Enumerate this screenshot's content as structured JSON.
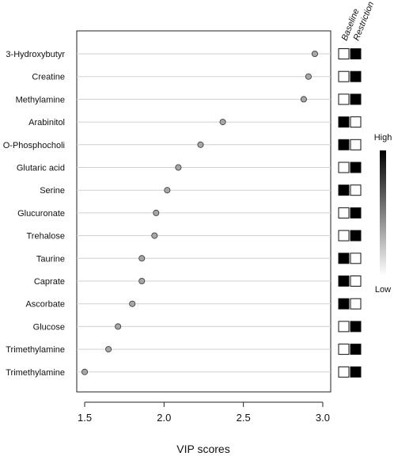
{
  "chart_data": {
    "type": "scatter",
    "subtype": "vip-dot-plot",
    "xlabel": "VIP scores",
    "xlim": [
      1.45,
      3.05
    ],
    "xticks": [
      1.5,
      2.0,
      2.5,
      3.0
    ],
    "xtick_labels": [
      "1.5",
      "2.0",
      "2.5",
      "3.0"
    ],
    "grid": "horizontal lines per row",
    "point_color": "#a6a6a6",
    "categories": [
      "3-Hydroxybutyr",
      "Creatine",
      "Methylamine",
      "Arabinitol",
      "O-Phosphocholi",
      "Glutaric acid",
      "Serine",
      "Glucuronate",
      "Trehalose",
      "Taurine",
      "Caprate",
      "Ascorbate",
      "Glucose",
      "Trimethylamine",
      "Trimethylamine"
    ],
    "values": [
      2.95,
      2.91,
      2.88,
      2.37,
      2.23,
      2.09,
      2.02,
      1.95,
      1.94,
      1.86,
      1.86,
      1.8,
      1.71,
      1.65,
      1.5
    ],
    "heatmap": {
      "columns": [
        "Baseline",
        "Restriction"
      ],
      "levels": [
        [
          0,
          1
        ],
        [
          0,
          1
        ],
        [
          0,
          1
        ],
        [
          1,
          0
        ],
        [
          1,
          0
        ],
        [
          0,
          1
        ],
        [
          1,
          0
        ],
        [
          0,
          1
        ],
        [
          0,
          1
        ],
        [
          1,
          0
        ],
        [
          1,
          0
        ],
        [
          1,
          0
        ],
        [
          0,
          1
        ],
        [
          0,
          1
        ],
        [
          0,
          1
        ]
      ],
      "high_color": "#000000",
      "low_color": "#ffffff"
    },
    "colorbar": {
      "high_label": "High",
      "low_label": "Low"
    }
  }
}
